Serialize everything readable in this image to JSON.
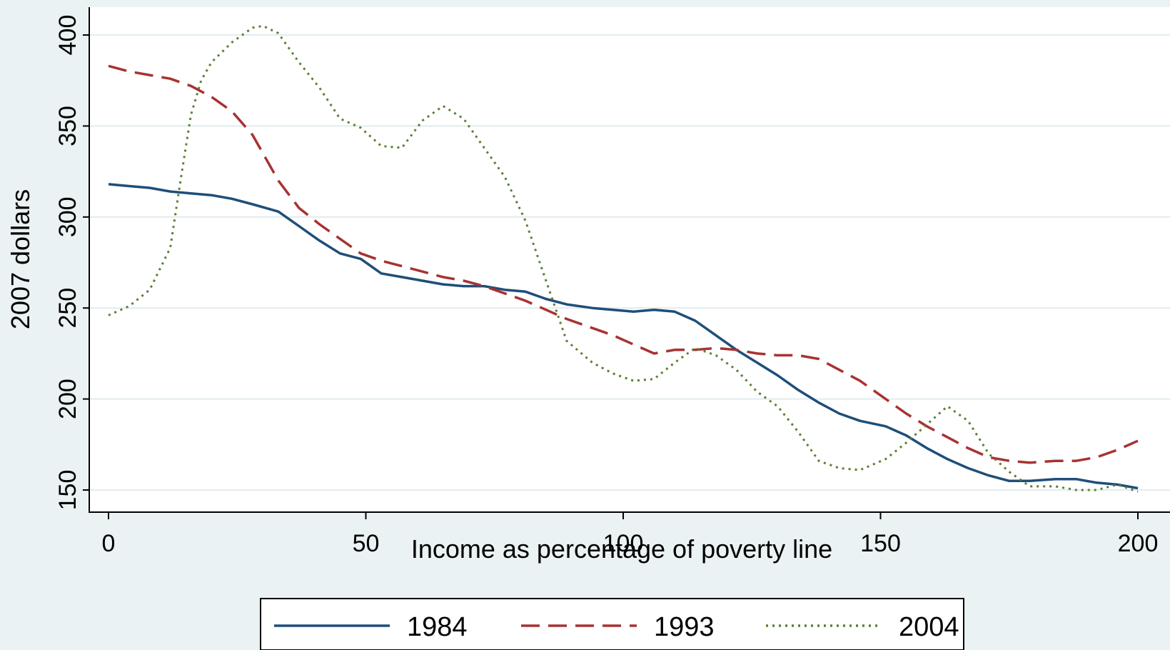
{
  "chart_data": {
    "type": "line",
    "title": "",
    "xlabel": "Income as percentage of poverty line",
    "ylabel": "2007 dollars",
    "xlim": [
      0,
      200
    ],
    "ylim": [
      150,
      400
    ],
    "xticks": [
      0,
      50,
      100,
      150,
      200
    ],
    "yticks": [
      150,
      200,
      250,
      300,
      350,
      400
    ],
    "grid": true,
    "legend_position": "bottom",
    "colors": {
      "background": "#eaf2f3",
      "plot_background": "#ffffff",
      "grid": "#e2ecef"
    },
    "series": [
      {
        "name": "1984",
        "style": "solid",
        "color": "#1f4e79",
        "x": [
          0,
          4,
          8,
          12,
          16,
          20,
          24,
          28,
          33,
          37,
          41,
          45,
          49,
          53,
          57,
          61,
          65,
          69,
          73,
          77,
          81,
          85,
          89,
          94,
          98,
          102,
          106,
          110,
          114,
          118,
          122,
          126,
          130,
          134,
          138,
          142,
          146,
          151,
          155,
          159,
          163,
          167,
          171,
          175,
          179,
          184,
          188,
          192,
          196,
          200
        ],
        "y": [
          318,
          317,
          316,
          314,
          313,
          312,
          310,
          307,
          303,
          295,
          287,
          280,
          277,
          269,
          267,
          265,
          263,
          262,
          262,
          260,
          259,
          255,
          252,
          250,
          249,
          248,
          249,
          248,
          243,
          235,
          227,
          220,
          213,
          205,
          198,
          192,
          188,
          185,
          180,
          173,
          167,
          162,
          158,
          155,
          155,
          156,
          156,
          154,
          153,
          151
        ]
      },
      {
        "name": "1993",
        "style": "dashed",
        "color": "#a83232",
        "x": [
          0,
          4,
          8,
          12,
          16,
          20,
          24,
          28,
          33,
          37,
          41,
          45,
          49,
          53,
          57,
          61,
          65,
          69,
          73,
          77,
          81,
          85,
          89,
          94,
          98,
          102,
          106,
          110,
          114,
          118,
          122,
          126,
          130,
          134,
          138,
          142,
          146,
          151,
          155,
          159,
          163,
          167,
          171,
          175,
          179,
          184,
          188,
          192,
          196,
          200
        ],
        "y": [
          383,
          380,
          378,
          376,
          372,
          366,
          358,
          345,
          320,
          305,
          296,
          288,
          280,
          276,
          273,
          270,
          267,
          265,
          262,
          258,
          254,
          249,
          244,
          239,
          235,
          230,
          225,
          227,
          227,
          228,
          227,
          225,
          224,
          224,
          222,
          216,
          210,
          200,
          192,
          185,
          179,
          173,
          168,
          166,
          165,
          166,
          166,
          168,
          172,
          177
        ]
      },
      {
        "name": "2004",
        "style": "dotted",
        "color": "#5b7f35",
        "x": [
          0,
          4,
          8,
          12,
          14,
          16,
          18,
          20,
          24,
          28,
          30,
          33,
          37,
          41,
          45,
          49,
          53,
          57,
          61,
          65,
          69,
          73,
          77,
          81,
          85,
          89,
          94,
          98,
          102,
          106,
          110,
          114,
          118,
          122,
          126,
          130,
          134,
          138,
          142,
          146,
          151,
          155,
          159,
          163,
          167,
          171,
          175,
          179,
          184,
          188,
          192,
          196,
          200
        ],
        "y": [
          246,
          251,
          260,
          283,
          320,
          356,
          375,
          385,
          396,
          404,
          405,
          401,
          385,
          371,
          354,
          349,
          339,
          338,
          353,
          361,
          354,
          338,
          322,
          298,
          265,
          232,
          220,
          214,
          210,
          211,
          220,
          228,
          224,
          216,
          204,
          196,
          182,
          166,
          162,
          161,
          167,
          176,
          186,
          196,
          188,
          170,
          160,
          152,
          152,
          150,
          150,
          153,
          149
        ]
      }
    ]
  }
}
